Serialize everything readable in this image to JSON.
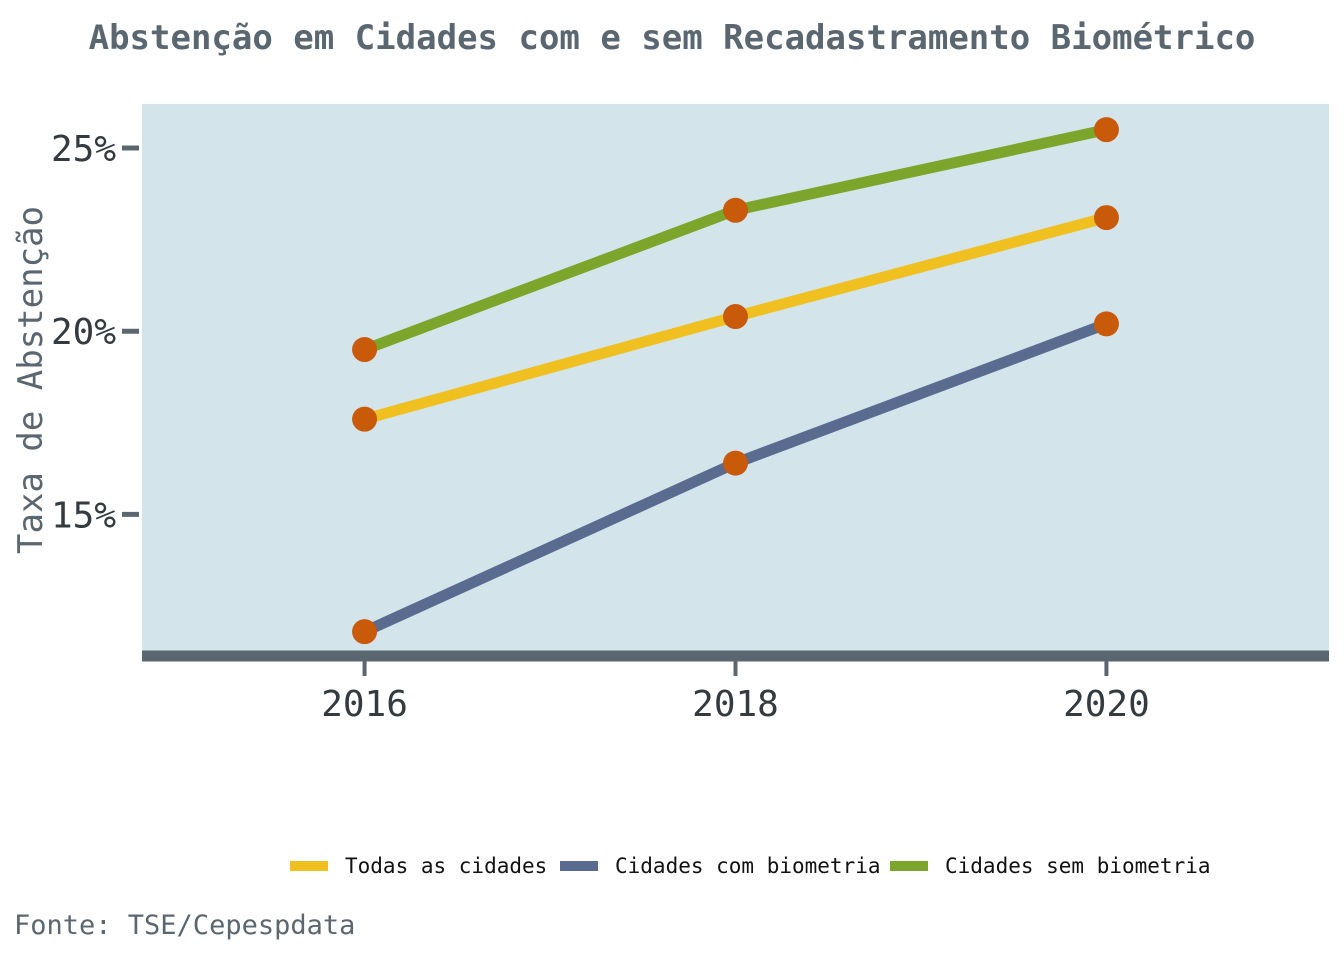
{
  "chart_data": {
    "type": "line",
    "title": "Abstenção em Cidades com e sem Recadastramento Biométrico",
    "xlabel": "",
    "ylabel": "Taxa de Abstenção",
    "x": [
      2016,
      2018,
      2020
    ],
    "x_tick_labels": [
      "2016",
      "2018",
      "2020"
    ],
    "xlim": [
      2014.8,
      2021.2
    ],
    "y_ticks": [
      15,
      20,
      25
    ],
    "y_tick_labels": [
      "15%",
      "20%",
      "25%"
    ],
    "ylim": [
      11.3,
      26.2
    ],
    "grid": false,
    "legend_position": "bottom",
    "series": [
      {
        "name": "Todas as cidades",
        "color": "#f0c020",
        "values": [
          17.6,
          20.4,
          23.1
        ]
      },
      {
        "name": "Cidades com biometria",
        "color": "#596b8f",
        "values": [
          11.8,
          16.4,
          20.2
        ]
      },
      {
        "name": "Cidades sem biometria",
        "color": "#7ca52c",
        "values": [
          19.5,
          23.3,
          25.5
        ]
      }
    ],
    "marker_color": "#c85a0a",
    "panel_color": "#d4e4eb",
    "axis_color": "#5b6770",
    "source": "Fonte: TSE/Cepespdata"
  }
}
